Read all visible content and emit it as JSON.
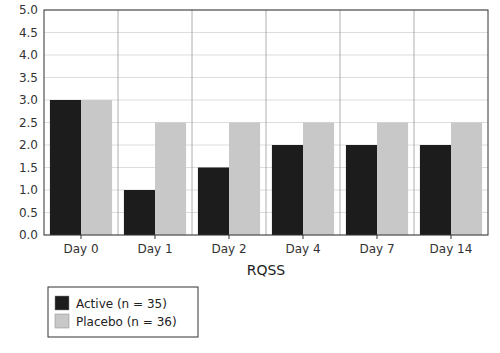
{
  "chart_data": {
    "type": "bar",
    "categories": [
      "Day 0",
      "Day 1",
      "Day 2",
      "Day 4",
      "Day 7",
      "Day 14"
    ],
    "series": [
      {
        "name": "Active (n = 35)",
        "color": "#1c1c1c",
        "values": [
          3.0,
          1.0,
          1.5,
          2.0,
          2.0,
          2.0
        ]
      },
      {
        "name": "Placebo (n = 36)",
        "color": "#c8c8c8",
        "values": [
          3.0,
          2.5,
          2.5,
          2.5,
          2.5,
          2.5
        ]
      }
    ],
    "xlabel": "RQSS",
    "ylim": [
      0.0,
      5.0
    ],
    "yticks": [
      {
        "value": 0.0,
        "label": "0.0"
      },
      0.5,
      {
        "value": 1.0,
        "label": "1.0"
      },
      1.5,
      {
        "value": 2.0,
        "label": "2.0"
      },
      2.5,
      {
        "value": 3.0,
        "label": "3.0"
      },
      3.5,
      {
        "value": 4.0,
        "label": "4.0"
      },
      4.5,
      {
        "value": 5.0,
        "label": "5.0"
      }
    ],
    "grid": true,
    "legend": "lower left"
  }
}
